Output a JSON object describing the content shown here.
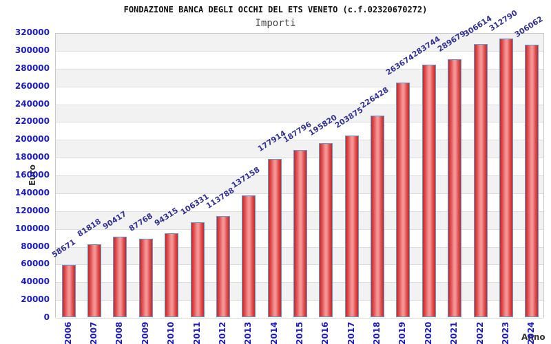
{
  "header": {
    "title": "FONDAZIONE BANCA DEGLI OCCHI DEL ETS VENETO (c.f.02320670272)",
    "subtitle": "Importi"
  },
  "chart_data": {
    "type": "bar",
    "title": "FONDAZIONE BANCA DEGLI OCCHI DEL ETS VENETO (c.f.02320670272)",
    "subtitle": "Importi",
    "xlabel": "Anno",
    "ylabel": "Euro",
    "categories": [
      "2006",
      "2007",
      "2008",
      "2009",
      "2010",
      "2011",
      "2012",
      "2013",
      "2014",
      "2015",
      "2016",
      "2017",
      "2018",
      "2019",
      "2020",
      "2021",
      "2022",
      "2023",
      "2024"
    ],
    "values": [
      58671,
      81818,
      90417,
      87768,
      94315,
      106331,
      113788,
      137158,
      177914,
      187796,
      195820,
      203875,
      226428,
      263674,
      283744,
      289679,
      306614,
      312790,
      306062
    ],
    "ylim": [
      0,
      320000
    ],
    "ytick_step": 20000,
    "grid": "horizontal-alternating-bands",
    "legend": "none",
    "value_labels": "rotated-above-bars",
    "colors": {
      "bar_edge_dark": "#c62828",
      "bar_mid": "#e04848",
      "bar_center_light": "#f29595",
      "bar_border": "#5c9fd6",
      "value_label": "#333399",
      "tick_label": "#1a1acc",
      "band_gray": "#f2f2f2",
      "band_white": "#ffffff",
      "grid_line": "#dcdcdc",
      "plot_border": "#c9c9c9"
    }
  }
}
